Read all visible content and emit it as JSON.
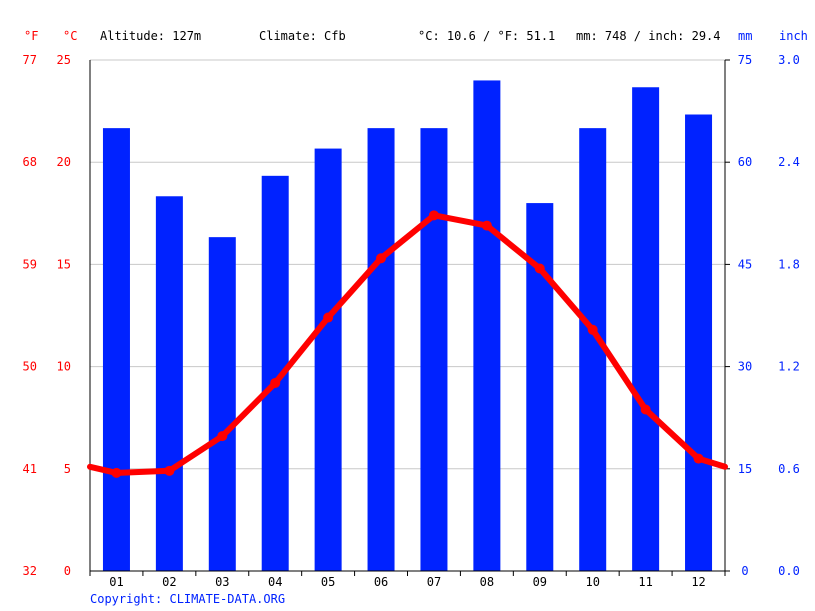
{
  "header": {
    "unit_f": "°F",
    "unit_c": "°C",
    "altitude": "Altitude: 127m",
    "climate": "Climate: Cfb",
    "avg_temp": "°C: 10.6 / °F: 51.1",
    "precip": "mm: 748 / inch: 29.4",
    "unit_mm": "mm",
    "unit_inch": "inch"
  },
  "copyright": "Copyright: CLIMATE-DATA.ORG",
  "colors": {
    "temperature": "#ff0000",
    "precipitation": "#0022ff",
    "grid": "#c8c8c8",
    "axis": "#000000"
  },
  "chart_data": {
    "type": "bar+line",
    "categories": [
      "01",
      "02",
      "03",
      "04",
      "05",
      "06",
      "07",
      "08",
      "09",
      "10",
      "11",
      "12"
    ],
    "series": [
      {
        "type": "bar",
        "axis": "right",
        "unit": "mm",
        "values": [
          65,
          55,
          49,
          58,
          62,
          65,
          65,
          72,
          54,
          65,
          71,
          67
        ]
      },
      {
        "type": "line",
        "axis": "left",
        "unit": "°C",
        "values": [
          4.8,
          4.9,
          6.6,
          9.2,
          12.4,
          15.3,
          17.4,
          16.9,
          14.8,
          11.8,
          7.9,
          5.5
        ],
        "edge_start": 5.1,
        "edge_end": 5.1
      }
    ],
    "y_left_c": {
      "range": [
        0,
        25
      ],
      "ticks": [
        "0",
        "5",
        "10",
        "15",
        "20",
        "25"
      ]
    },
    "y_left_f": {
      "range": [
        32,
        77
      ],
      "ticks": [
        "32",
        "41",
        "50",
        "59",
        "68",
        "77"
      ]
    },
    "y_right_mm": {
      "range": [
        0,
        75
      ],
      "ticks": [
        "0",
        "15",
        "30",
        "45",
        "60",
        "75"
      ]
    },
    "y_right_inch": {
      "range": [
        0,
        3
      ],
      "ticks": [
        "0.0",
        "0.6",
        "1.2",
        "1.8",
        "2.4",
        "3.0"
      ]
    },
    "grid": true
  }
}
